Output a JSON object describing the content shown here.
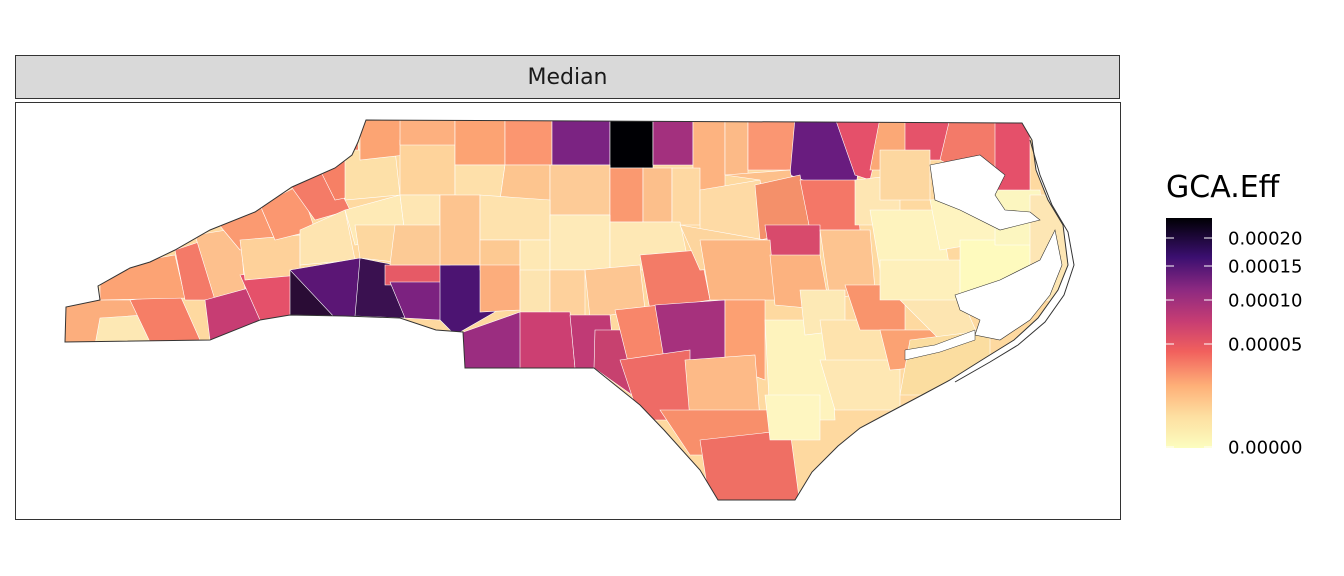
{
  "facet": {
    "label": "Median"
  },
  "legend": {
    "title": "GCA.Eff",
    "ticks": [
      "0.00020",
      "0.00015",
      "0.00010",
      "0.00005",
      "0.00000"
    ],
    "colors": [
      "#000004",
      "#2c115f",
      "#721f81",
      "#b73779",
      "#f1605d",
      "#feb078",
      "#fcfdbf"
    ]
  },
  "map": {
    "state_outline_color": "#333333",
    "water_color": "#ffffff"
  }
}
